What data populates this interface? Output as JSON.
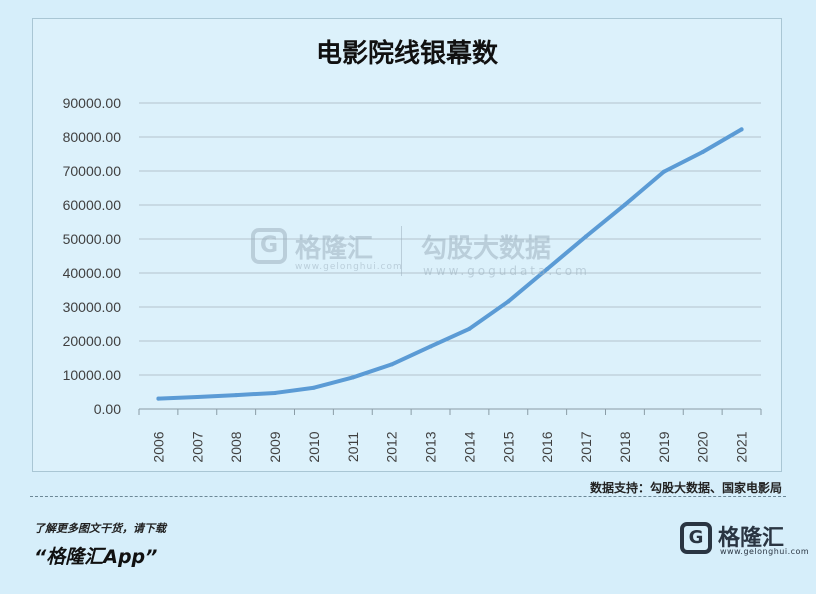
{
  "chart_data": {
    "type": "line",
    "title": "电影院线银幕数",
    "xlabel": "",
    "ylabel": "",
    "categories": [
      "2006",
      "2007",
      "2008",
      "2009",
      "2010",
      "2011",
      "2012",
      "2013",
      "2014",
      "2015",
      "2016",
      "2017",
      "2018",
      "2019",
      "2020",
      "2021"
    ],
    "series": [
      {
        "values": [
          3034,
          3527,
          4097,
          4723,
          6256,
          9286,
          13118,
          18398,
          23600,
          31627,
          41179,
          50776,
          60079,
          69787,
          75581,
          82248
        ]
      }
    ],
    "ylim": [
      0,
      90000
    ],
    "yticks": [
      "0.00",
      "10000.00",
      "20000.00",
      "30000.00",
      "40000.00",
      "50000.00",
      "60000.00",
      "70000.00",
      "80000.00",
      "90000.00"
    ],
    "grid": true,
    "line_color": "#5b9bd5"
  },
  "watermark": {
    "logo_letter": "G",
    "name": "格隆汇",
    "url_left": "www.gelonghui.com",
    "name2": "勾股大数据",
    "url_right": "www.gogudata.com"
  },
  "source": "数据支持：勾股大数据、国家电影局",
  "footer": {
    "promo": "了解更多图文干货，请下载",
    "app_name": "“格隆汇App”",
    "brand_logo_letter": "G",
    "brand_name": "格隆汇",
    "brand_url": "www.gelonghui.com"
  }
}
